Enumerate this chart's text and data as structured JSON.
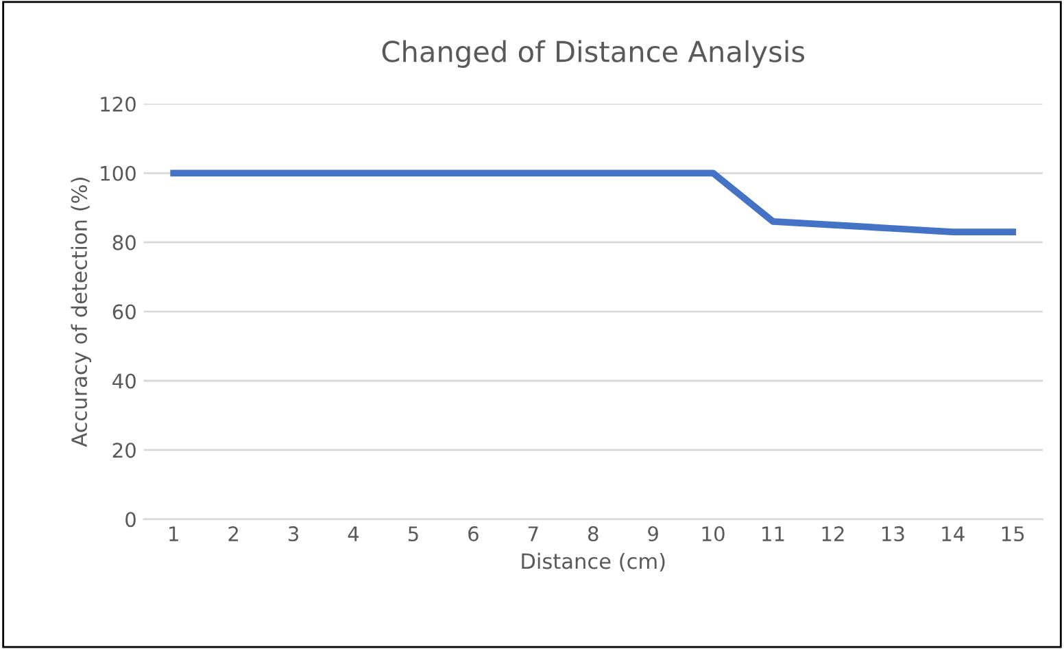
{
  "chart_data": {
    "type": "line",
    "title": "Changed of Distance Analysis",
    "xlabel": "Distance (cm)",
    "ylabel": "Accuracy of detection (%)",
    "categories": [
      "1",
      "2",
      "3",
      "4",
      "5",
      "6",
      "7",
      "8",
      "9",
      "10",
      "11",
      "12",
      "13",
      "14",
      "15"
    ],
    "series": [
      {
        "color": "#4472c4",
        "values": [
          100,
          100,
          100,
          100,
          100,
          100,
          100,
          100,
          100,
          100,
          86,
          85,
          84,
          83,
          83
        ]
      }
    ],
    "ylim": [
      0,
      120
    ],
    "yticks": [
      0,
      20,
      40,
      60,
      80,
      100,
      120
    ],
    "grid": "y",
    "marker": "none",
    "line_style": "solid"
  }
}
